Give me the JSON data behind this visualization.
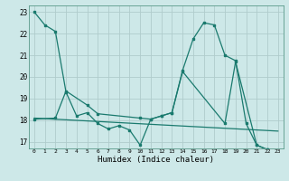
{
  "xlabel": "Humidex (Indice chaleur)",
  "xlim": [
    -0.5,
    23.5
  ],
  "ylim": [
    16.7,
    23.3
  ],
  "background_color": "#cde8e8",
  "grid_color": "#b0cccc",
  "line_color": "#1a7a6e",
  "line1_x": [
    0,
    1,
    2,
    3,
    4,
    5,
    6,
    7,
    8,
    9,
    10,
    11,
    12,
    13,
    14,
    15,
    16,
    17,
    18,
    19,
    20,
    21,
    22,
    23
  ],
  "line1_y": [
    23.0,
    22.4,
    22.1,
    19.3,
    18.2,
    18.35,
    17.85,
    17.6,
    17.75,
    17.55,
    16.85,
    18.05,
    18.2,
    18.35,
    20.3,
    21.75,
    22.5,
    22.4,
    21.0,
    20.75,
    17.85,
    16.85,
    16.65,
    16.55
  ],
  "line2_x": [
    0,
    2,
    3,
    5,
    6,
    10,
    11,
    12,
    13,
    14,
    18,
    19,
    21,
    22,
    23
  ],
  "line2_y": [
    18.05,
    18.1,
    19.35,
    18.7,
    18.3,
    18.1,
    18.05,
    18.2,
    18.35,
    20.25,
    17.85,
    20.7,
    16.85,
    16.65,
    16.55
  ],
  "line3_x": [
    0,
    23
  ],
  "line3_y": [
    18.1,
    17.5
  ]
}
